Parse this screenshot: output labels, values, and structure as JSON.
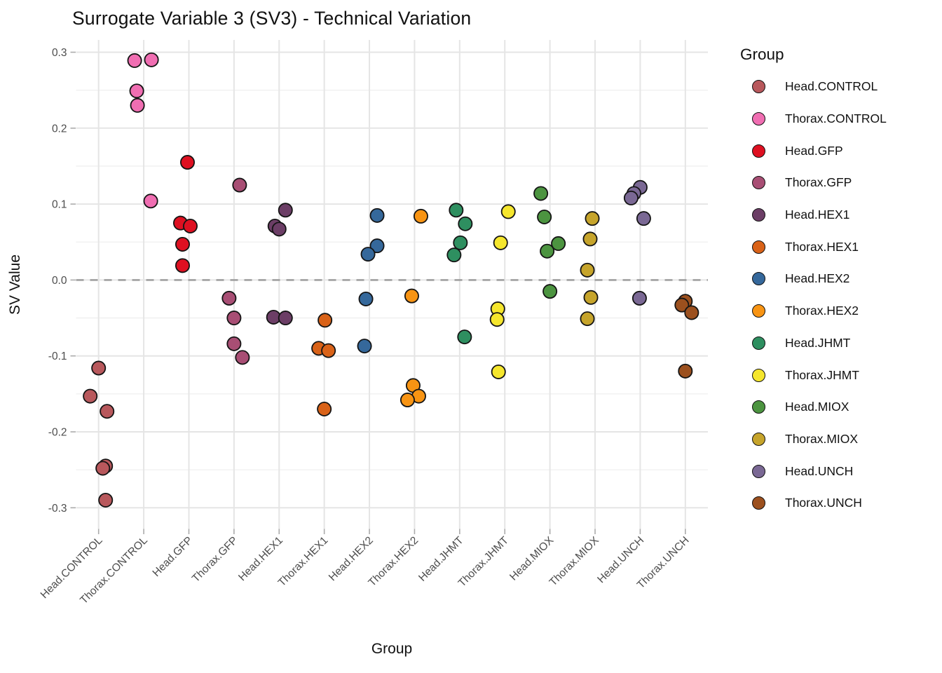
{
  "figure": {
    "title": "Surrogate Variable 3 (SV3) - Technical Variation"
  },
  "axes": {
    "x_title": "Group",
    "y_title": "SV Value",
    "y_tick_labels": [
      "0.3",
      "0.2",
      "0.1",
      "0.0",
      "-0.1",
      "-0.2",
      "-0.3"
    ]
  },
  "legend": {
    "title": "Group",
    "position": "right"
  },
  "chart_data": {
    "type": "scatter",
    "title": "Surrogate Variable 3 (SV3) - Technical Variation",
    "xlabel": "Group",
    "ylabel": "SV Value",
    "ylim": [
      -0.3,
      0.3
    ],
    "y_major_ticks": [
      0.3,
      0.2,
      0.1,
      0.0,
      -0.1,
      -0.2,
      -0.3
    ],
    "y_minor_ticks": [
      0.25,
      0.15,
      0.05,
      -0.05,
      -0.15,
      -0.25
    ],
    "grid": true,
    "zero_line": {
      "y": 0,
      "style": "dashed",
      "color": "#A0A0A0"
    },
    "legend_title": "Group",
    "legend_position": "right",
    "categories": [
      "Head.CONTROL",
      "Thorax.CONTROL",
      "Head.GFP",
      "Thorax.GFP",
      "Head.HEX1",
      "Thorax.HEX1",
      "Head.HEX2",
      "Thorax.HEX2",
      "Head.JHMT",
      "Thorax.JHMT",
      "Head.MIOX",
      "Thorax.MIOX",
      "Head.UNCH",
      "Thorax.UNCH"
    ],
    "groups": [
      {
        "label": "Head.CONTROL",
        "color": "#B8585C",
        "points": [
          {
            "v": -0.116,
            "dx": 0
          },
          {
            "v": -0.153,
            "dx": -12
          },
          {
            "v": -0.173,
            "dx": 12
          },
          {
            "v": -0.245,
            "dx": 10
          },
          {
            "v": -0.248,
            "dx": 6
          },
          {
            "v": -0.29,
            "dx": 10
          }
        ]
      },
      {
        "label": "Thorax.CONTROL",
        "color": "#F06EB2",
        "points": [
          {
            "v": 0.289,
            "dx": -13
          },
          {
            "v": 0.29,
            "dx": 11
          },
          {
            "v": 0.249,
            "dx": -10
          },
          {
            "v": 0.23,
            "dx": -9
          },
          {
            "v": 0.104,
            "dx": 10
          }
        ]
      },
      {
        "label": "Head.GFP",
        "color": "#DE1021",
        "points": [
          {
            "v": 0.155,
            "dx": -2
          },
          {
            "v": 0.075,
            "dx": -12
          },
          {
            "v": 0.071,
            "dx": 2
          },
          {
            "v": 0.047,
            "dx": -9
          },
          {
            "v": 0.019,
            "dx": -9
          }
        ]
      },
      {
        "label": "Thorax.GFP",
        "color": "#A84E74",
        "points": [
          {
            "v": 0.125,
            "dx": 8
          },
          {
            "v": -0.024,
            "dx": -7
          },
          {
            "v": -0.05,
            "dx": 0
          },
          {
            "v": -0.084,
            "dx": 0
          },
          {
            "v": -0.102,
            "dx": 12
          }
        ]
      },
      {
        "label": "Head.HEX1",
        "color": "#6C3E66",
        "points": [
          {
            "v": 0.092,
            "dx": 9
          },
          {
            "v": 0.071,
            "dx": -6
          },
          {
            "v": 0.067,
            "dx": 0
          },
          {
            "v": -0.049,
            "dx": -8
          },
          {
            "v": -0.05,
            "dx": 9
          }
        ]
      },
      {
        "label": "Thorax.HEX1",
        "color": "#D96218",
        "points": [
          {
            "v": -0.053,
            "dx": 1
          },
          {
            "v": -0.09,
            "dx": -8
          },
          {
            "v": -0.093,
            "dx": 6
          },
          {
            "v": -0.17,
            "dx": 0
          }
        ]
      },
      {
        "label": "Head.HEX2",
        "color": "#35689B",
        "points": [
          {
            "v": 0.085,
            "dx": 11
          },
          {
            "v": 0.045,
            "dx": 11
          },
          {
            "v": 0.034,
            "dx": -2
          },
          {
            "v": -0.025,
            "dx": -5
          },
          {
            "v": -0.087,
            "dx": -7
          }
        ]
      },
      {
        "label": "Thorax.HEX2",
        "color": "#F89413",
        "points": [
          {
            "v": 0.084,
            "dx": 9
          },
          {
            "v": -0.021,
            "dx": -4
          },
          {
            "v": -0.139,
            "dx": -2
          },
          {
            "v": -0.153,
            "dx": 6
          },
          {
            "v": -0.158,
            "dx": -10
          }
        ]
      },
      {
        "label": "Head.JHMT",
        "color": "#2E8F60",
        "points": [
          {
            "v": 0.092,
            "dx": -5
          },
          {
            "v": 0.074,
            "dx": 8
          },
          {
            "v": 0.049,
            "dx": 1
          },
          {
            "v": 0.033,
            "dx": -8
          },
          {
            "v": -0.075,
            "dx": 7
          }
        ]
      },
      {
        "label": "Thorax.JHMT",
        "color": "#F5E62D",
        "points": [
          {
            "v": 0.09,
            "dx": 5
          },
          {
            "v": 0.049,
            "dx": -6
          },
          {
            "v": -0.038,
            "dx": -10
          },
          {
            "v": -0.052,
            "dx": -11
          },
          {
            "v": -0.121,
            "dx": -9
          }
        ]
      },
      {
        "label": "Head.MIOX",
        "color": "#4C9440",
        "points": [
          {
            "v": 0.114,
            "dx": -13
          },
          {
            "v": 0.083,
            "dx": -8
          },
          {
            "v": 0.048,
            "dx": 12
          },
          {
            "v": 0.038,
            "dx": -4
          },
          {
            "v": -0.015,
            "dx": 0
          }
        ]
      },
      {
        "label": "Thorax.MIOX",
        "color": "#C6A42B",
        "points": [
          {
            "v": 0.081,
            "dx": -4
          },
          {
            "v": 0.054,
            "dx": -7
          },
          {
            "v": 0.013,
            "dx": -11
          },
          {
            "v": -0.023,
            "dx": -6
          },
          {
            "v": -0.051,
            "dx": -11
          }
        ]
      },
      {
        "label": "Head.UNCH",
        "color": "#7A6894",
        "points": [
          {
            "v": 0.122,
            "dx": 0
          },
          {
            "v": 0.114,
            "dx": -9
          },
          {
            "v": 0.108,
            "dx": -13
          },
          {
            "v": 0.081,
            "dx": 5
          },
          {
            "v": -0.024,
            "dx": -1
          }
        ]
      },
      {
        "label": "Thorax.UNCH",
        "color": "#9C501E",
        "points": [
          {
            "v": -0.028,
            "dx": 0
          },
          {
            "v": -0.033,
            "dx": -5
          },
          {
            "v": -0.043,
            "dx": 9
          },
          {
            "v": -0.12,
            "dx": 0
          }
        ]
      }
    ]
  }
}
